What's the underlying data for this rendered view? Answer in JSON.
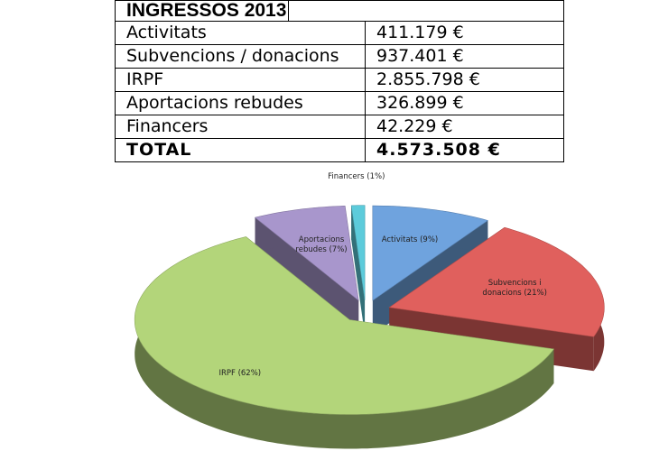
{
  "table": {
    "title": "INGRESSOS 2013",
    "rows": [
      [
        "Activitats",
        "411.179 €"
      ],
      [
        "Subvencions / donacions",
        "937.401 €"
      ],
      [
        "IRPF",
        "2.855.798 €"
      ],
      [
        "Aportacions rebudes",
        "326.899 €"
      ],
      [
        "Financers",
        "42.229 €"
      ],
      [
        "TOTAL",
        "4.573.508 €"
      ]
    ]
  },
  "chart_data": {
    "type": "pie",
    "values": [
      9,
      21,
      62,
      7,
      1
    ],
    "value_labels": [
      "Activitats (9%)",
      "Subvencions i donacions (21%)",
      "IRPF (62%)",
      "Aportacions rebudes (7%)",
      "Financers (1%)"
    ],
    "colors": [
      "#6fa3de",
      "#e0605d",
      "#b3d57a",
      "#a896cc",
      "#5ccbdb"
    ]
  }
}
